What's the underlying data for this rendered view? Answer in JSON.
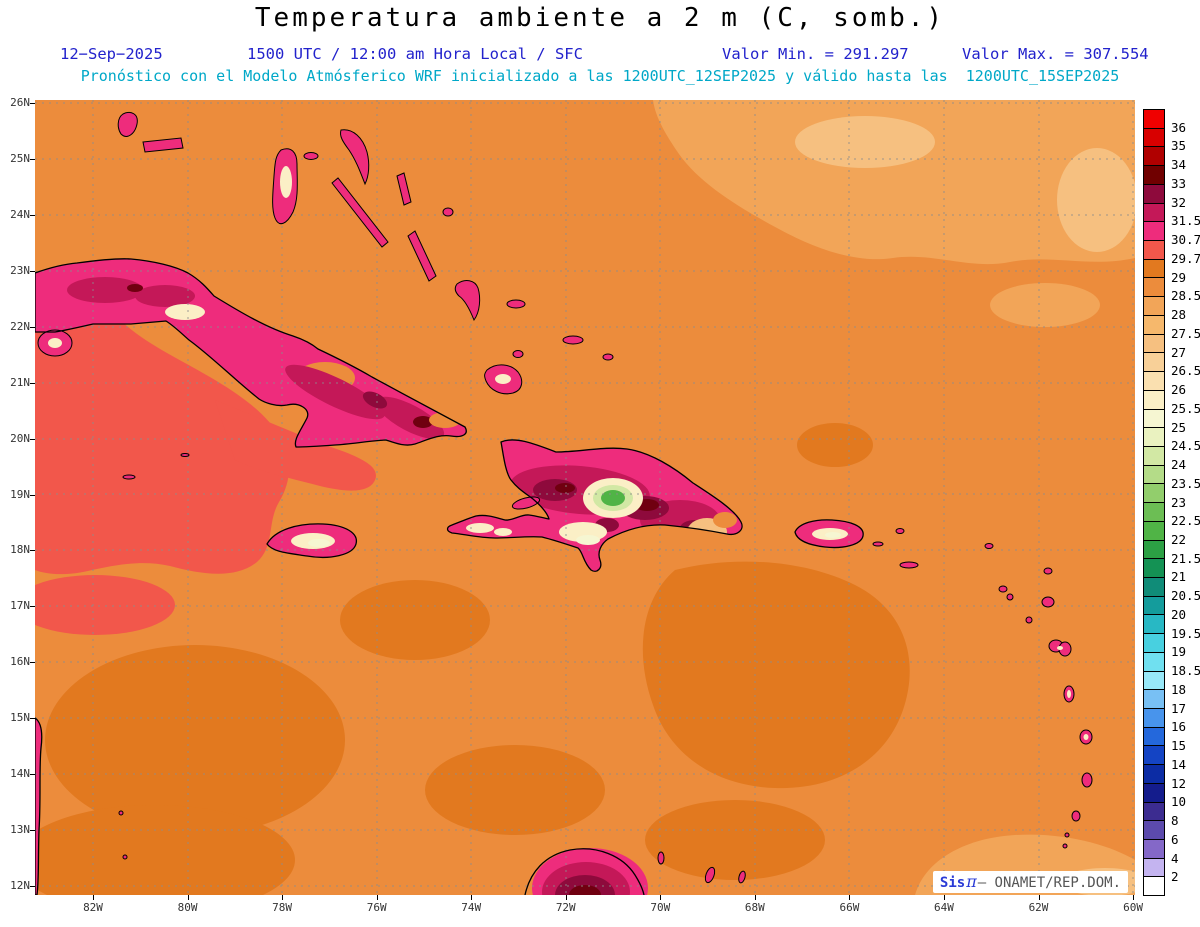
{
  "header": {
    "title": "Temperatura ambiente a 2 m (C, somb.)",
    "info": {
      "date": "12−Sep−2025",
      "time": "1500 UTC / 12:00 am Hora Local / SFC",
      "min": "Valor Min. = 291.297",
      "max": "Valor Max. = 307.554"
    },
    "forecast": "Pronóstico con el Modelo Atmósferico WRF inicializado a las 1200UTC_12SEP2025 y válido hasta las  1200UTC_15SEP2025",
    "colors": {
      "info": "#2222CC",
      "forecast": "#00A8C8"
    }
  },
  "axes": {
    "lat_labels": [
      "26N",
      "25N",
      "24N",
      "23N",
      "22N",
      "21N",
      "20N",
      "19N",
      "18N",
      "17N",
      "16N",
      "15N",
      "14N",
      "13N",
      "12N"
    ],
    "lon_labels": [
      "82W",
      "80W",
      "78W",
      "76W",
      "74W",
      "72W",
      "70W",
      "68W",
      "66W",
      "64W",
      "62W",
      "60W"
    ]
  },
  "colorbar": {
    "labels": [
      "36",
      "35",
      "34",
      "33",
      "32",
      "31.5",
      "30.7",
      "29.7",
      "29",
      "28.5",
      "28",
      "27.5",
      "27",
      "26.5",
      "26",
      "25.5",
      "25",
      "24.5",
      "24",
      "23.5",
      "23",
      "22.5",
      "22",
      "21.5",
      "21",
      "20.5",
      "20",
      "19.5",
      "19",
      "18.5",
      "18",
      "17",
      "16",
      "15",
      "14",
      "12",
      "10",
      "8",
      "6",
      "4",
      "2"
    ],
    "colors": [
      "#F00000",
      "#D80000",
      "#B00000",
      "#700000",
      "#8E0A3C",
      "#C41858",
      "#EE2C7C",
      "#F2574B",
      "#E2791F",
      "#EC8C3C",
      "#F2A558",
      "#F6B86C",
      "#F6C080",
      "#F8D098",
      "#FAE0B0",
      "#FBEFC6",
      "#F6F6D2",
      "#EAF2C0",
      "#D2E8A4",
      "#B4DC88",
      "#92CE6C",
      "#6CBE54",
      "#50B446",
      "#2CA044",
      "#149254",
      "#108C78",
      "#149C9C",
      "#28B8C4",
      "#48D0E0",
      "#70E0F0",
      "#98E8F8",
      "#78C0F4",
      "#4894EC",
      "#2468DC",
      "#1444C4",
      "#0C2CA4",
      "#141C8C",
      "#3C2C90",
      "#5C4AAC",
      "#8468C8",
      "#C4B4F0",
      "#FFFFFF"
    ]
  },
  "map": {
    "colors": {
      "sea": "#EC8C3C",
      "sea_dark": "#E2791F",
      "sea_warm": "#F2574B",
      "tan1": "#F2A558",
      "tan2": "#F6C080",
      "pink": "#EE2C7C",
      "crimson": "#C41858",
      "maroon": "#8E0A3C",
      "dark_maroon": "#700010",
      "cream": "#FBEFC6",
      "pale_yellow": "#F6F6D2",
      "yellow_green": "#D2E8A4",
      "green": "#50B446",
      "coast": "#000000",
      "grid": "#8C8C8C"
    }
  },
  "watermark": {
    "sis": "Sis",
    "pi": "π",
    "org": "– ONAMET/REP.DOM."
  }
}
